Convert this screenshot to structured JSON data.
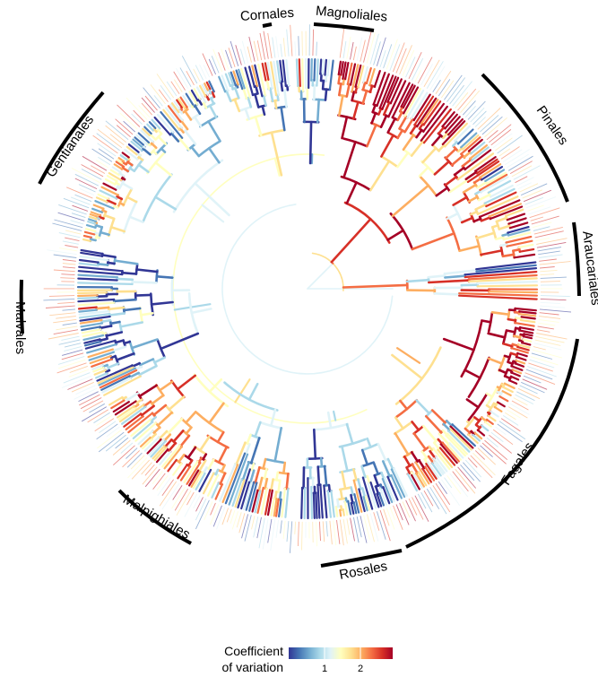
{
  "figure": {
    "type": "circular-phylogeny",
    "colorscale": [
      "#313695",
      "#4575b4",
      "#74add1",
      "#abd9e9",
      "#e0f3f8",
      "#ffffbf",
      "#fee090",
      "#fdae61",
      "#f46d43",
      "#d73027",
      "#a50026"
    ],
    "tip_count": 420,
    "backbone_color": "#ffffbf"
  },
  "clades": [
    {
      "name": "Cornales"
    },
    {
      "name": "Magnoliales"
    },
    {
      "name": "Pinales"
    },
    {
      "name": "Araucariales"
    },
    {
      "name": "Fagales"
    },
    {
      "name": "Rosales"
    },
    {
      "name": "Malpighiales"
    },
    {
      "name": "Malvales"
    },
    {
      "name": "Gentianales"
    }
  ],
  "legend": {
    "title_line1": "Coefficient",
    "title_line2": "of variation",
    "ticks": [
      {
        "label": "1",
        "value": 1
      },
      {
        "label": "2",
        "value": 2
      }
    ],
    "range": [
      0,
      2.9
    ]
  }
}
